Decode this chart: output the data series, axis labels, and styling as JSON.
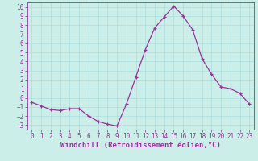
{
  "x": [
    0,
    1,
    2,
    3,
    4,
    5,
    6,
    7,
    8,
    9,
    10,
    11,
    12,
    13,
    14,
    15,
    16,
    17,
    18,
    19,
    20,
    21,
    22,
    23
  ],
  "y": [
    -0.5,
    -0.9,
    -1.3,
    -1.4,
    -1.2,
    -1.2,
    -2.0,
    -2.6,
    -2.9,
    -3.1,
    -0.7,
    2.3,
    5.3,
    7.7,
    8.9,
    10.1,
    9.0,
    7.5,
    4.3,
    2.6,
    1.2,
    1.0,
    0.5,
    -0.7
  ],
  "line_color": "#993399",
  "marker": "P",
  "marker_size": 2.5,
  "xlabel": "Windchill (Refroidissement éolien,°C)",
  "xlim": [
    -0.5,
    23.5
  ],
  "ylim": [
    -3.5,
    10.5
  ],
  "xticks": [
    0,
    1,
    2,
    3,
    4,
    5,
    6,
    7,
    8,
    9,
    10,
    11,
    12,
    13,
    14,
    15,
    16,
    17,
    18,
    19,
    20,
    21,
    22,
    23
  ],
  "yticks": [
    -3,
    -2,
    -1,
    0,
    1,
    2,
    3,
    4,
    5,
    6,
    7,
    8,
    9,
    10
  ],
  "grid_color": "#aadddd",
  "bg_color": "#cceee8",
  "tick_color": "#993399",
  "tick_fontsize": 5.5,
  "xlabel_fontsize": 6.5
}
